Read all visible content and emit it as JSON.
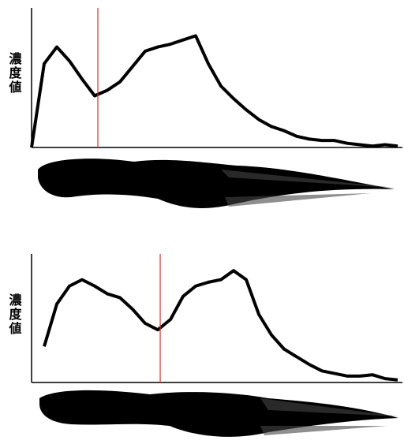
{
  "chart_data": [
    {
      "type": "line",
      "y_label": "濃度値",
      "color": "#000000",
      "marker_color": "#e03030",
      "categories": [
        null,
        null,
        null,
        null,
        null,
        null,
        null,
        null,
        null,
        null,
        null,
        null,
        null,
        null,
        null,
        null,
        null,
        null,
        null,
        null,
        null,
        null,
        null,
        null,
        null,
        null,
        null,
        null,
        null,
        null
      ],
      "values": [
        0,
        60,
        72,
        62,
        49,
        37,
        41,
        47,
        58,
        69,
        72,
        74,
        77,
        80,
        60,
        44,
        35,
        27,
        20,
        15,
        12,
        8,
        6,
        5,
        5,
        3,
        2,
        1,
        2,
        1
      ],
      "ylim": [
        0,
        100
      ],
      "marker_index": 5.25
    },
    {
      "type": "line",
      "y_label": "濃度値",
      "color": "#000000",
      "marker_color": "#e03030",
      "categories": [
        null,
        null,
        null,
        null,
        null,
        null,
        null,
        null,
        null,
        null,
        null,
        null,
        null,
        null,
        null,
        null,
        null,
        null,
        null,
        null,
        null,
        null,
        null,
        null,
        null,
        null,
        null,
        null,
        null,
        null
      ],
      "values": [
        null,
        28,
        61,
        75,
        80,
        75,
        69,
        66,
        57,
        46,
        41,
        49,
        67,
        75,
        78,
        80,
        87,
        80,
        53,
        37,
        26,
        20,
        14,
        9,
        7,
        5,
        5,
        6,
        3,
        2
      ],
      "ylim": [
        0,
        100
      ],
      "marker_index": 10.19
    }
  ]
}
